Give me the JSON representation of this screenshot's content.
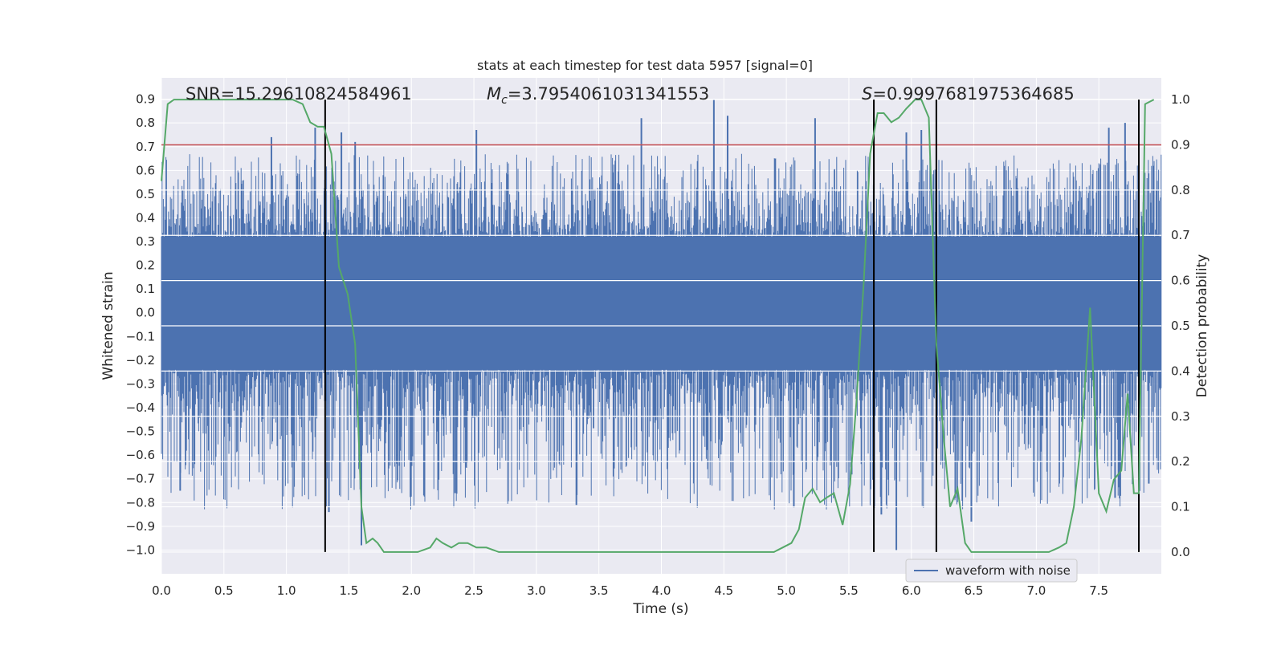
{
  "colors": {
    "background": "#ffffff",
    "plot_area": "#eaeaf2",
    "grid": "#ffffff",
    "waveform": "#4c72b0",
    "probability": "#55a868",
    "threshold": "#c44e52",
    "markers": "#000000",
    "text": "#262626"
  },
  "chart_data": {
    "type": "line",
    "title": "stats at each timestep for test data 5957 [signal=0]",
    "xlabel": "Time (s)",
    "ylabel": "Whitened strain",
    "y2label": "Detection probability",
    "xlim": [
      0.0,
      8.0
    ],
    "ylim": [
      -1.1,
      0.99
    ],
    "y2lim": [
      -0.048,
      1.048
    ],
    "x_ticks": [
      "0.0",
      "0.5",
      "1.0",
      "1.5",
      "2.0",
      "2.5",
      "3.0",
      "3.5",
      "4.0",
      "4.5",
      "5.0",
      "5.5",
      "6.0",
      "6.5",
      "7.0",
      "7.5"
    ],
    "y_ticks": [
      "0.9",
      "0.8",
      "0.7",
      "0.6",
      "0.5",
      "0.4",
      "0.3",
      "0.2",
      "0.1",
      "0.0",
      "−0.1",
      "−0.2",
      "−0.3",
      "−0.4",
      "−0.5",
      "−0.6",
      "−0.7",
      "−0.8",
      "−0.9",
      "−1.0"
    ],
    "y2_ticks": [
      "1.0",
      "0.9",
      "0.8",
      "0.7",
      "0.6",
      "0.5",
      "0.4",
      "0.3",
      "0.2",
      "0.1",
      "0.0"
    ],
    "grid": true,
    "annotations": {
      "snr": "SNR=15.29610824584961",
      "mc_symbol": "M",
      "mc_sub": "c",
      "mc_value": "=3.7954061031341553",
      "s_symbol": "S",
      "s_value": "=0.9997681975364685"
    },
    "legend": {
      "position": "lower-right",
      "entries": [
        "waveform with noise"
      ]
    },
    "threshold": {
      "axis": "right",
      "value": 0.9
    },
    "markers_x": [
      1.31,
      5.7,
      6.2,
      7.82
    ],
    "waveform": {
      "name": "waveform with noise",
      "x_range": [
        0.0,
        8.0
      ],
      "core_band": [
        -0.24,
        0.32
      ],
      "typical_peak": 0.55,
      "max": 0.9,
      "min": -1.0,
      "spikes": [
        {
          "x": 0.88,
          "y": 0.74
        },
        {
          "x": 1.23,
          "y": 0.78
        },
        {
          "x": 1.44,
          "y": 0.76
        },
        {
          "x": 1.55,
          "y": 0.72
        },
        {
          "x": 2.52,
          "y": 0.77
        },
        {
          "x": 3.84,
          "y": 0.82
        },
        {
          "x": 4.42,
          "y": 0.9
        },
        {
          "x": 4.53,
          "y": 0.83
        },
        {
          "x": 5.23,
          "y": 0.82
        },
        {
          "x": 5.96,
          "y": 0.76
        },
        {
          "x": 6.08,
          "y": 0.77
        },
        {
          "x": 7.58,
          "y": 0.78
        },
        {
          "x": 7.71,
          "y": 0.8
        },
        {
          "x": 1.6,
          "y": -0.98
        },
        {
          "x": 5.88,
          "y": -1.0
        },
        {
          "x": 5.76,
          "y": -0.85
        },
        {
          "x": 6.48,
          "y": -0.88
        },
        {
          "x": 3.32,
          "y": -0.81
        },
        {
          "x": 0.15,
          "y": -0.75
        },
        {
          "x": 5.06,
          "y": -0.82
        },
        {
          "x": 1.34,
          "y": -0.84
        },
        {
          "x": 7.63,
          "y": -0.78
        },
        {
          "x": 2.35,
          "y": -0.76
        },
        {
          "x": 7.9,
          "y": -0.72
        }
      ]
    },
    "probability": {
      "name": "Detection probability",
      "x": [
        0.0,
        0.05,
        0.1,
        0.2,
        0.4,
        0.6,
        0.8,
        0.95,
        1.05,
        1.13,
        1.19,
        1.25,
        1.3,
        1.36,
        1.42,
        1.49,
        1.55,
        1.6,
        1.64,
        1.69,
        1.73,
        1.78,
        1.84,
        1.89,
        1.95,
        2.05,
        2.15,
        2.2,
        2.25,
        2.32,
        2.38,
        2.45,
        2.52,
        2.6,
        2.7,
        2.8,
        3.0,
        3.3,
        3.6,
        3.8,
        4.0,
        4.2,
        4.35,
        4.5,
        4.65,
        4.8,
        4.9,
        4.97,
        5.04,
        5.1,
        5.15,
        5.21,
        5.27,
        5.32,
        5.38,
        5.45,
        5.51,
        5.56,
        5.62,
        5.67,
        5.73,
        5.78,
        5.84,
        5.9,
        5.96,
        6.03,
        6.08,
        6.14,
        6.2,
        6.26,
        6.31,
        6.37,
        6.43,
        6.48,
        6.55,
        6.7,
        6.9,
        7.1,
        7.18,
        7.24,
        7.3,
        7.36,
        7.43,
        7.5,
        7.56,
        7.62,
        7.68,
        7.73,
        7.78,
        7.82,
        7.87,
        7.94
      ],
      "y": [
        0.82,
        0.99,
        1.0,
        1.0,
        1.0,
        1.0,
        1.0,
        1.0,
        1.0,
        0.99,
        0.95,
        0.94,
        0.94,
        0.88,
        0.63,
        0.57,
        0.46,
        0.1,
        0.02,
        0.03,
        0.02,
        0.0,
        0.0,
        0.0,
        0.0,
        0.0,
        0.01,
        0.03,
        0.02,
        0.01,
        0.02,
        0.02,
        0.01,
        0.01,
        0.0,
        0.0,
        0.0,
        0.0,
        0.0,
        0.0,
        0.0,
        0.0,
        0.0,
        0.0,
        0.0,
        0.0,
        0.0,
        0.01,
        0.02,
        0.05,
        0.12,
        0.14,
        0.11,
        0.12,
        0.13,
        0.06,
        0.15,
        0.33,
        0.6,
        0.88,
        0.97,
        0.97,
        0.95,
        0.96,
        0.98,
        1.0,
        1.0,
        0.96,
        0.46,
        0.25,
        0.1,
        0.14,
        0.02,
        0.0,
        0.0,
        0.0,
        0.0,
        0.0,
        0.01,
        0.02,
        0.1,
        0.25,
        0.54,
        0.13,
        0.09,
        0.16,
        0.18,
        0.35,
        0.13,
        0.13,
        0.99,
        1.0
      ]
    }
  }
}
